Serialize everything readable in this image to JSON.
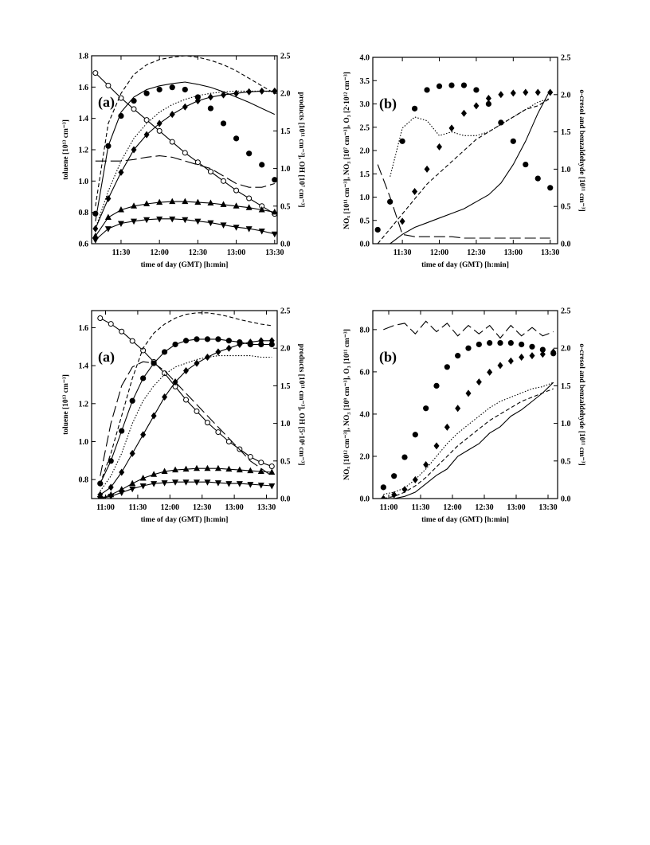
{
  "chart_data": [
    {
      "type": "line",
      "annotation": "(a)",
      "xlabel": "time of day (GMT) [h:min]",
      "ylabel": "toluene [10¹³ cm⁻³]",
      "y2label": "products [10¹¹ cm⁻³], OH [10⁷ cm⁻³]",
      "x": [
        670,
        680,
        690,
        700,
        710,
        720,
        730,
        740,
        750,
        760,
        770,
        780,
        790,
        800,
        810
      ],
      "xlim": [
        667,
        812
      ],
      "xticks": [
        {
          "value": 690,
          "label": "11:30"
        },
        {
          "value": 720,
          "label": "12:00"
        },
        {
          "value": 750,
          "label": "12:30"
        },
        {
          "value": 780,
          "label": "13:00"
        },
        {
          "value": 810,
          "label": "13:30"
        }
      ],
      "ylim": [
        0.6,
        1.8
      ],
      "yticks": [
        0.6,
        0.8,
        {
          "value": 1,
          "label": "1.0"
        },
        1.2,
        1.4,
        1.6,
        1.8
      ],
      "y2lim": [
        0,
        2.5
      ],
      "y2ticks": [
        {
          "value": 0,
          "label": "0.0"
        },
        0.5,
        {
          "value": 1,
          "label": "1.0"
        },
        1.5,
        {
          "value": 2,
          "label": "2.0"
        },
        2.5
      ],
      "series": [
        {
          "color": "#000000",
          "marker": "open-circle",
          "line": "solid",
          "values": [
            1.69,
            1.61,
            1.53,
            1.46,
            1.39,
            1.32,
            1.25,
            1.18,
            1.12,
            1.06,
            1.0,
            0.94,
            0.89,
            0.84,
            0.79
          ]
        },
        {
          "color": "#000000",
          "marker": "filled-circle",
          "axis": "y2",
          "values": [
            0.4,
            1.3,
            1.7,
            1.9,
            2.0,
            2.05,
            2.08,
            2.05,
            1.95,
            1.8,
            1.6,
            1.4,
            1.2,
            1.05,
            0.85
          ]
        },
        {
          "color": "#000000",
          "line": "solid",
          "axis": "y2",
          "values": [
            0.3,
            1.3,
            1.75,
            1.95,
            2.05,
            2.1,
            2.13,
            2.15,
            2.12,
            2.08,
            2.02,
            1.95,
            1.88,
            1.8,
            1.72
          ]
        },
        {
          "color": "#000000",
          "marker": "diamond",
          "line": "solid",
          "axis": "y2",
          "values": [
            0.2,
            0.6,
            0.95,
            1.25,
            1.45,
            1.6,
            1.72,
            1.82,
            1.9,
            1.95,
            1.98,
            2.0,
            2.02,
            2.03,
            2.03
          ]
        },
        {
          "color": "#000000",
          "marker": "triangle-up",
          "line": "solid",
          "axis": "y2",
          "values": [
            0.1,
            0.35,
            0.45,
            0.5,
            0.53,
            0.55,
            0.56,
            0.56,
            0.55,
            0.54,
            0.52,
            0.5,
            0.48,
            0.45,
            0.42
          ]
        },
        {
          "color": "#000000",
          "marker": "triangle-down",
          "line": "solid",
          "axis": "y2",
          "values": [
            0.05,
            0.2,
            0.27,
            0.3,
            0.32,
            0.33,
            0.33,
            0.32,
            0.3,
            0.28,
            0.25,
            0.22,
            0.2,
            0.17,
            0.13
          ]
        },
        {
          "color": "#000000",
          "line": "dash",
          "axis": "y2",
          "values": [
            0.5,
            1.6,
            2.0,
            2.25,
            2.38,
            2.45,
            2.48,
            2.5,
            2.48,
            2.44,
            2.38,
            2.3,
            2.2,
            2.1,
            2.0
          ]
        },
        {
          "color": "#000000",
          "line": "dot",
          "axis": "y2",
          "values": [
            0.2,
            0.7,
            1.1,
            1.4,
            1.6,
            1.75,
            1.85,
            1.92,
            1.97,
            2.0,
            2.02,
            2.03,
            2.03,
            2.03,
            2.02
          ]
        },
        {
          "color": "#000000",
          "line": "longdash",
          "axis": "y2",
          "values": [
            1.1,
            1.1,
            1.1,
            1.12,
            1.15,
            1.17,
            1.15,
            1.1,
            1.05,
            1.0,
            0.9,
            0.8,
            0.75,
            0.75,
            0.8
          ]
        }
      ]
    },
    {
      "type": "line",
      "annotation": "(b)",
      "xlabel": "time of day (GMT) [h:min]",
      "ylabel": "NOₓ [10¹¹ cm⁻³], NO₃ [10⁷ cm⁻³], O₃ [2·10¹² cm⁻³]",
      "y2label": "o-cresol and benzaldehyde [10¹¹ cm⁻³]",
      "x": [
        670,
        680,
        690,
        700,
        710,
        720,
        730,
        740,
        750,
        760,
        770,
        780,
        790,
        800,
        810
      ],
      "xlim": [
        666,
        816
      ],
      "xticks": [
        {
          "value": 690,
          "label": "11:30"
        },
        {
          "value": 720,
          "label": "12:00"
        },
        {
          "value": 750,
          "label": "12:30"
        },
        {
          "value": 780,
          "label": "13:00"
        },
        {
          "value": 810,
          "label": "13:30"
        }
      ],
      "ylim": [
        0,
        4
      ],
      "yticks": [
        {
          "value": 0,
          "label": "0.0"
        },
        0.5,
        {
          "value": 1,
          "label": "1.0"
        },
        1.5,
        {
          "value": 2,
          "label": "2.0"
        },
        2.5,
        {
          "value": 3,
          "label": "3.0"
        },
        3.5,
        {
          "value": 4,
          "label": "4.0"
        }
      ],
      "y2lim": [
        0,
        2.5
      ],
      "y2ticks": [
        {
          "value": 0,
          "label": "0.0"
        },
        0.5,
        {
          "value": 1,
          "label": "1.0"
        },
        1.5,
        {
          "value": 2,
          "label": "2.0"
        },
        2.5
      ],
      "series": [
        {
          "color": "#000000",
          "marker": "filled-circle",
          "values": [
            0.3,
            0.9,
            2.2,
            2.9,
            3.3,
            3.38,
            3.4,
            3.4,
            3.3,
            3.0,
            2.6,
            2.2,
            1.7,
            1.4,
            1.2
          ]
        },
        {
          "color": "#000000",
          "marker": "diamond",
          "axis": "y2",
          "values": [
            null,
            null,
            0.3,
            0.7,
            1.0,
            1.3,
            1.55,
            1.75,
            1.85,
            1.95,
            2.0,
            2.02,
            2.03,
            2.03,
            2.03
          ]
        },
        {
          "color": "#000000",
          "line": "dot",
          "axis": "y2",
          "values": [
            null,
            0.9,
            1.55,
            1.7,
            1.65,
            1.45,
            1.5,
            1.45,
            1.45,
            1.5,
            1.6,
            1.7,
            1.8,
            1.9,
            1.95
          ]
        },
        {
          "color": "#000000",
          "line": "dash",
          "axis": "y2",
          "values": [
            0,
            0.2,
            0.4,
            0.6,
            0.8,
            0.95,
            1.1,
            1.25,
            1.4,
            1.5,
            1.6,
            1.7,
            1.8,
            1.85,
            1.95
          ]
        },
        {
          "color": "#000000",
          "line": "solid",
          "values": [
            0,
            0,
            0.2,
            0.35,
            0.45,
            0.55,
            0.65,
            0.75,
            0.9,
            1.05,
            1.3,
            1.7,
            2.2,
            2.8,
            3.3
          ]
        },
        {
          "color": "#000000",
          "line": "longdash",
          "values": [
            1.7,
            1.0,
            0.2,
            0.15,
            0.15,
            0.15,
            0.15,
            0.12,
            0.12,
            0.12,
            0.12,
            0.12,
            0.12,
            0.12,
            0.12
          ]
        }
      ]
    },
    {
      "type": "line",
      "annotation": "(a)",
      "xlabel": "time of day (GMT) [h:min]",
      "ylabel": "toluene [10¹³ cm⁻³]",
      "y2label": "products [10¹¹ cm⁻³], OH [5·10⁶ cm⁻³]",
      "x": [
        655,
        665,
        675,
        685,
        695,
        705,
        715,
        725,
        735,
        745,
        755,
        765,
        775,
        785,
        795,
        805,
        815
      ],
      "xlim": [
        647,
        820
      ],
      "xticks": [
        {
          "value": 660,
          "label": "11:00"
        },
        {
          "value": 690,
          "label": "11:30"
        },
        {
          "value": 720,
          "label": "12:00"
        },
        {
          "value": 750,
          "label": "12:30"
        },
        {
          "value": 780,
          "label": "13:00"
        },
        {
          "value": 810,
          "label": "13:30"
        }
      ],
      "ylim": [
        0.7,
        1.69
      ],
      "yticks": [
        0.8,
        {
          "value": 1,
          "label": "1.0"
        },
        1.2,
        1.4,
        1.6
      ],
      "y2lim": [
        0,
        2.5
      ],
      "y2ticks": [
        {
          "value": 0,
          "label": "0.0"
        },
        0.5,
        {
          "value": 1,
          "label": "1.0"
        },
        1.5,
        {
          "value": 2,
          "label": "2.0"
        },
        2.5
      ],
      "series": [
        {
          "color": "#000000",
          "marker": "open-circle",
          "line": "solid",
          "values": [
            1.65,
            1.62,
            1.58,
            1.53,
            1.48,
            1.42,
            1.36,
            1.29,
            1.22,
            1.16,
            1.1,
            1.05,
            1.0,
            0.96,
            0.92,
            0.89,
            0.87
          ]
        },
        {
          "color": "#000000",
          "marker": "filled-circle",
          "line": "solid",
          "axis": "y2",
          "values": [
            0.2,
            0.5,
            0.9,
            1.3,
            1.6,
            1.8,
            1.95,
            2.05,
            2.1,
            2.12,
            2.12,
            2.12,
            2.1,
            2.08,
            2.05,
            2.05,
            2.05
          ]
        },
        {
          "color": "#000000",
          "marker": "diamond",
          "line": "solid",
          "axis": "y2",
          "values": [
            0.05,
            0.15,
            0.35,
            0.6,
            0.85,
            1.1,
            1.35,
            1.55,
            1.7,
            1.8,
            1.88,
            1.95,
            2.0,
            2.05,
            2.08,
            2.1,
            2.1
          ]
        },
        {
          "color": "#000000",
          "marker": "triangle-up",
          "line": "solid",
          "axis": "y2",
          "values": [
            0,
            0.05,
            0.12,
            0.2,
            0.27,
            0.32,
            0.36,
            0.38,
            0.39,
            0.4,
            0.4,
            0.4,
            0.39,
            0.38,
            0.37,
            0.36,
            0.35
          ]
        },
        {
          "color": "#000000",
          "marker": "triangle-down",
          "line": "solid",
          "axis": "y2",
          "values": [
            0,
            0.03,
            0.08,
            0.13,
            0.17,
            0.2,
            0.21,
            0.22,
            0.22,
            0.22,
            0.22,
            0.21,
            0.2,
            0.2,
            0.19,
            0.18,
            0.17
          ]
        },
        {
          "color": "#000000",
          "line": "dash",
          "axis": "y2",
          "values": [
            0.2,
            0.6,
            1.1,
            1.6,
            2.0,
            2.2,
            2.32,
            2.4,
            2.45,
            2.47,
            2.47,
            2.45,
            2.42,
            2.38,
            2.35,
            2.32,
            2.3
          ]
        },
        {
          "color": "#000000",
          "line": "dot",
          "axis": "y2",
          "values": [
            0.1,
            0.3,
            0.6,
            1.0,
            1.3,
            1.5,
            1.65,
            1.75,
            1.8,
            1.85,
            1.88,
            1.9,
            1.9,
            1.9,
            1.9,
            1.88,
            1.88
          ]
        },
        {
          "color": "#000000",
          "line": "longdash",
          "axis": "y2",
          "values": [
            0.3,
            1.0,
            1.5,
            1.75,
            1.82,
            1.8,
            1.7,
            1.55,
            1.4,
            1.25,
            1.1,
            0.95,
            0.8,
            0.65,
            0.5,
            0.4,
            0.3
          ]
        }
      ]
    },
    {
      "type": "line",
      "annotation": "(b)",
      "xlabel": "time of day (GMT) [h:min]",
      "ylabel": "NOₓ [10¹² cm⁻³], NO₃ [10⁹ cm⁻³], O₃ [10¹¹ cm⁻³]",
      "y2label": "o-cresol and benzaldehyde [10¹¹ cm⁻³]",
      "x": [
        655,
        665,
        675,
        685,
        695,
        705,
        715,
        725,
        735,
        745,
        755,
        765,
        775,
        785,
        795,
        805,
        815
      ],
      "xlim": [
        645,
        819
      ],
      "xticks": [
        {
          "value": 660,
          "label": "11:00"
        },
        {
          "value": 690,
          "label": "11:30"
        },
        {
          "value": 720,
          "label": "12:00"
        },
        {
          "value": 750,
          "label": "12:30"
        },
        {
          "value": 780,
          "label": "13:00"
        },
        {
          "value": 810,
          "label": "13:30"
        }
      ],
      "ylim": [
        0,
        8.9
      ],
      "yticks": [
        {
          "value": 0,
          "label": "0.0"
        },
        {
          "value": 2,
          "label": "2.0"
        },
        {
          "value": 4,
          "label": "4.0"
        },
        {
          "value": 6,
          "label": "6.0"
        },
        {
          "value": 8,
          "label": "8.0"
        }
      ],
      "y2lim": [
        0,
        2.5
      ],
      "y2ticks": [
        {
          "value": 0,
          "label": "0.0"
        },
        0.5,
        {
          "value": 1,
          "label": "1.0"
        },
        1.5,
        {
          "value": 2,
          "label": "2.0"
        },
        2.5
      ],
      "series": [
        {
          "color": "#000000",
          "marker": "filled-circle",
          "axis": "y2",
          "values": [
            0.15,
            0.3,
            0.55,
            0.85,
            1.2,
            1.5,
            1.75,
            1.9,
            2.0,
            2.05,
            2.07,
            2.07,
            2.07,
            2.05,
            2.02,
            1.98,
            1.93
          ]
        },
        {
          "color": "#000000",
          "marker": "diamond",
          "axis": "y2",
          "values": [
            0,
            0.05,
            0.12,
            0.25,
            0.45,
            0.7,
            0.95,
            1.2,
            1.4,
            1.55,
            1.68,
            1.77,
            1.83,
            1.88,
            1.9,
            1.92,
            1.95
          ]
        },
        {
          "color": "#000000",
          "line": "dot",
          "values": [
            0.2,
            0.3,
            0.5,
            0.9,
            1.4,
            2.0,
            2.6,
            3.1,
            3.5,
            3.9,
            4.3,
            4.6,
            4.8,
            5.0,
            5.2,
            5.3,
            5.5
          ]
        },
        {
          "color": "#000000",
          "line": "dash",
          "values": [
            0,
            0.1,
            0.3,
            0.6,
            1.0,
            1.5,
            2.0,
            2.5,
            2.9,
            3.3,
            3.7,
            4.0,
            4.3,
            4.6,
            4.8,
            5.0,
            5.2
          ]
        },
        {
          "color": "#000000",
          "line": "solid",
          "values": [
            0,
            0,
            0.1,
            0.3,
            0.7,
            1.1,
            1.4,
            2.0,
            2.3,
            2.6,
            3.1,
            3.4,
            3.9,
            4.2,
            4.6,
            5.0,
            5.5
          ]
        },
        {
          "color": "#000000",
          "line": "longdash",
          "values": [
            8.0,
            8.2,
            8.3,
            7.8,
            8.4,
            7.9,
            8.3,
            7.7,
            8.2,
            7.8,
            8.2,
            7.6,
            8.2,
            7.7,
            8.1,
            7.7,
            7.9
          ]
        }
      ]
    }
  ]
}
